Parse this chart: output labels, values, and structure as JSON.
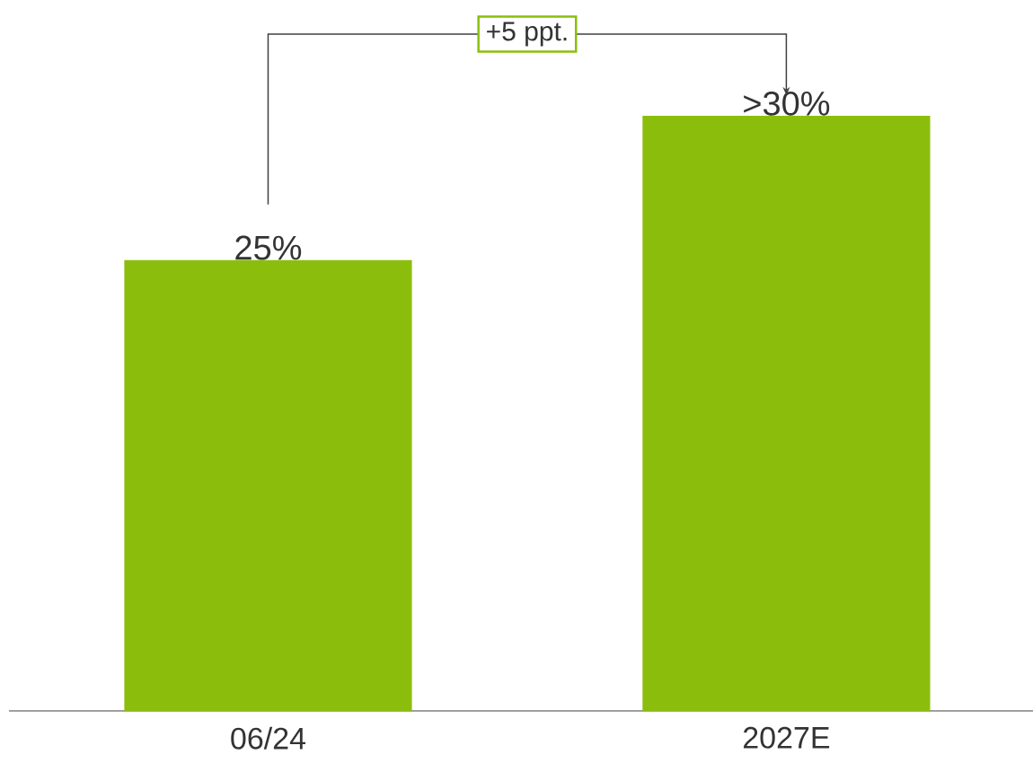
{
  "chart_data": {
    "type": "bar",
    "categories": [
      "06/24",
      "2027E"
    ],
    "values": [
      25,
      33
    ],
    "value_labels": [
      "25%",
      ">30%"
    ],
    "color": "#8bbe0c",
    "annotations": [
      "+5 ppt."
    ]
  }
}
